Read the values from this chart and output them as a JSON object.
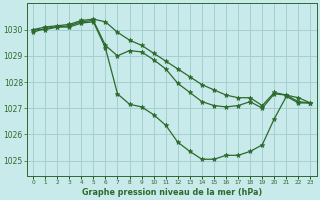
{
  "title": "Graphe pression niveau de la mer (hPa)",
  "bg_color": "#c8eaea",
  "plot_bg_color": "#c8eaea",
  "grid_color": "#a0cccc",
  "line_color": "#2d6a2d",
  "marker_color": "#2d6a2d",
  "xlim_min": -0.5,
  "xlim_max": 23.5,
  "ylim_min": 1024.4,
  "ylim_max": 1031.0,
  "yticks": [
    1025,
    1026,
    1027,
    1028,
    1029,
    1030
  ],
  "xticks": [
    0,
    1,
    2,
    3,
    4,
    5,
    6,
    7,
    8,
    9,
    10,
    11,
    12,
    13,
    14,
    15,
    16,
    17,
    18,
    19,
    20,
    21,
    22,
    23
  ],
  "series": [
    [
      1030.0,
      1030.1,
      1030.15,
      1030.2,
      1030.35,
      1030.4,
      1030.3,
      1029.9,
      1029.6,
      1029.4,
      1029.1,
      1028.8,
      1028.5,
      1028.2,
      1027.9,
      1027.7,
      1027.5,
      1027.4,
      1027.4,
      1027.1,
      1027.6,
      1027.5,
      1027.4,
      1027.2
    ],
    [
      1030.0,
      1030.0,
      1030.1,
      1030.15,
      1030.3,
      1030.35,
      1029.4,
      1029.0,
      1029.2,
      1029.15,
      1028.85,
      1028.5,
      1027.95,
      1027.6,
      1027.25,
      1027.1,
      1027.05,
      1027.1,
      1027.25,
      1027.0,
      1027.55,
      1027.5,
      1027.25,
      1027.2
    ],
    [
      1029.9,
      1030.05,
      1030.1,
      1030.1,
      1030.25,
      1030.3,
      1029.3,
      1027.55,
      1027.15,
      1027.05,
      1026.75,
      1026.35,
      1025.7,
      1025.35,
      1025.05,
      1025.05,
      1025.2,
      1025.2,
      1025.35,
      1025.6,
      1026.6,
      1027.45,
      1027.2,
      1027.2
    ]
  ]
}
